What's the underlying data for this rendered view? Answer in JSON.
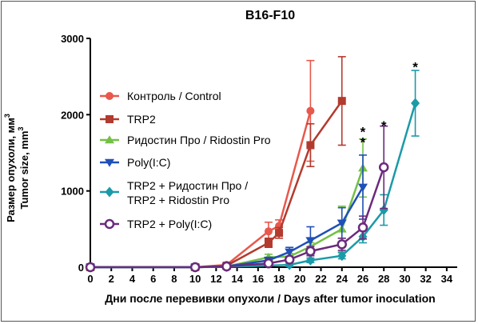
{
  "chart_data": {
    "type": "line",
    "title": "B16-F10",
    "xlabel": "Дни после перевивки опухоли / Days after tumor inoculation",
    "ylabel_line1": "Размер опухоли, мм",
    "ylabel_line1_sup": "3",
    "ylabel_line2": "Tumor size, mm",
    "ylabel_line2_sup": "3",
    "xlim": [
      0,
      35
    ],
    "ylim": [
      0,
      3000
    ],
    "xticks": [
      0,
      2,
      4,
      6,
      8,
      10,
      12,
      14,
      16,
      18,
      20,
      22,
      24,
      26,
      28,
      30,
      32,
      34
    ],
    "yticks": [
      0,
      1000,
      2000,
      3000
    ],
    "legend_position": "left-center",
    "series": [
      {
        "name": "Контроль / Control",
        "color": "#e8584c",
        "marker": "circle-filled",
        "x": [
          0,
          10,
          13,
          17,
          18,
          21
        ],
        "y": [
          0,
          0,
          30,
          470,
          540,
          2050
        ],
        "err": [
          0,
          0,
          10,
          120,
          80,
          660
        ]
      },
      {
        "name": "TRP2",
        "color": "#b33a2e",
        "marker": "square",
        "x": [
          0,
          10,
          13,
          17,
          18,
          21,
          24
        ],
        "y": [
          0,
          0,
          20,
          320,
          450,
          1600,
          2180
        ],
        "err": [
          0,
          0,
          10,
          60,
          70,
          280,
          580
        ]
      },
      {
        "name": "Ридостин Про / Ridostin Pro",
        "color": "#74c046",
        "marker": "triangle-up",
        "x": [
          0,
          10,
          13,
          17,
          19,
          21,
          24,
          26
        ],
        "y": [
          0,
          0,
          10,
          130,
          140,
          270,
          500,
          1300
        ],
        "err": [
          0,
          0,
          5,
          40,
          40,
          50,
          300,
          380
        ]
      },
      {
        "name": "Poly(I:C)",
        "color": "#1f4fb8",
        "marker": "triangle-down",
        "x": [
          0,
          10,
          13,
          17,
          19,
          21,
          24,
          26
        ],
        "y": [
          0,
          0,
          10,
          90,
          200,
          350,
          580,
          1050
        ],
        "err": [
          0,
          0,
          5,
          40,
          60,
          180,
          200,
          420
        ]
      },
      {
        "name": "TRP2 + Ридостин Про / TRP2 + Ridostin Pro",
        "color": "#1b9aa8",
        "marker": "diamond",
        "x": [
          0,
          10,
          13,
          19,
          21,
          24,
          26,
          28,
          31
        ],
        "y": [
          0,
          0,
          5,
          30,
          90,
          150,
          400,
          750,
          2150
        ],
        "err": [
          0,
          0,
          5,
          20,
          30,
          40,
          80,
          200,
          430
        ]
      },
      {
        "name": "TRP2 + Poly(I:C)",
        "color": "#6b2a7c",
        "marker": "circle-open",
        "x": [
          0,
          10,
          13,
          17,
          19,
          21,
          24,
          26,
          28
        ],
        "y": [
          0,
          0,
          10,
          50,
          100,
          210,
          300,
          520,
          1310
        ],
        "err": [
          0,
          0,
          5,
          20,
          30,
          60,
          80,
          150,
          540
        ]
      }
    ],
    "annotations": [
      {
        "text": "*",
        "x": 26,
        "y": 1800
      },
      {
        "text": "*",
        "x": 26,
        "y": 1660
      },
      {
        "text": "*",
        "x": 28,
        "y": 1880
      },
      {
        "text": "*",
        "x": 31,
        "y": 2650
      }
    ]
  }
}
